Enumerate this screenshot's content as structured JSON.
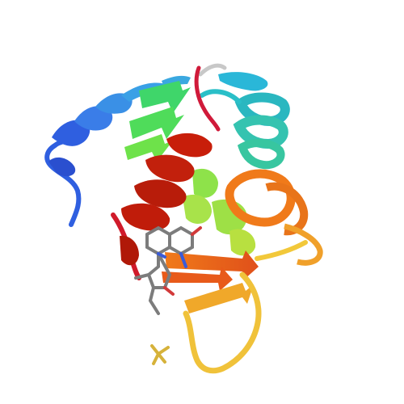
{
  "scene": {
    "kind": "protein-ribbon-rendering",
    "background_color": "#ffffff",
    "palette": {
      "n_terminus_blue": "#2f5fe0",
      "light_blue": "#3aa0e6",
      "cyan": "#35c3c8",
      "green": "#3fd66a",
      "yellow_green": "#a8e34a",
      "yellow": "#f0c23a",
      "orange": "#f07a1a",
      "orange_red": "#e0501a",
      "red": "#c81e0a",
      "ligand_gray": "#7c7c7c",
      "ligand_blue": "#3a5bd8",
      "ligand_red": "#d23a3a",
      "sulfate_yellow": "#d6b23a"
    },
    "elements": [
      "n-terminal-helix",
      "cyan-helix",
      "green-strands",
      "red-c-terminal-helix",
      "orange-loops",
      "yellow-loop",
      "bound-ligand",
      "sulfate-ion"
    ]
  }
}
